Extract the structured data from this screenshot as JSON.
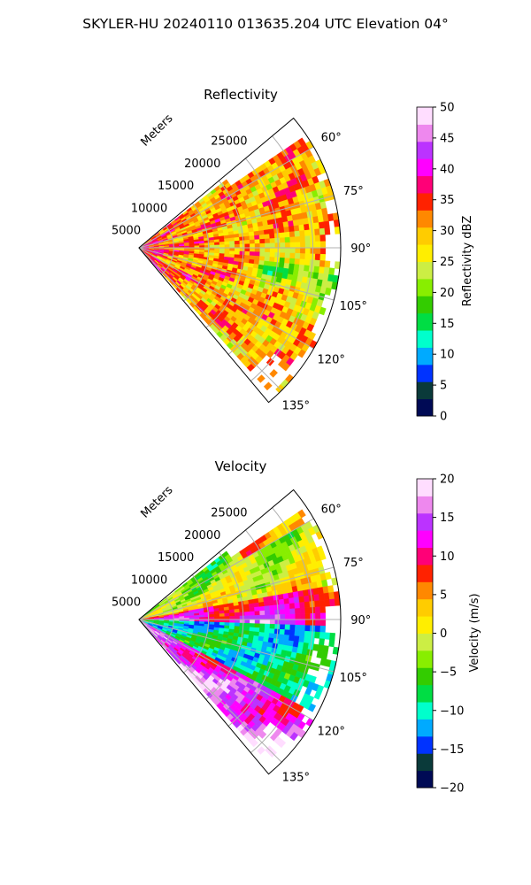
{
  "figure_title": "SKYLER-HU  20240110  013635.204 UTC Elevation 04°",
  "chart_data": [
    {
      "type": "heatmap",
      "projection": "polar-sector",
      "title": "Reflectivity",
      "range_axis_label": "Meters",
      "range_ticks": [
        5000,
        10000,
        15000,
        20000,
        25000
      ],
      "range_tick_labels": [
        "5000",
        "10000",
        "15000",
        "20000",
        "25000"
      ],
      "rmax": 29000,
      "azimuth_ticks": [
        60,
        75,
        90,
        105,
        120,
        135
      ],
      "azimuth_tick_labels": [
        "60°",
        "75°",
        "90°",
        "105°",
        "120°",
        "135°"
      ],
      "azimuth_range": [
        50,
        140
      ],
      "grid": true,
      "colorbar": {
        "label": "Reflectivity dBZ",
        "min": 0,
        "max": 50,
        "ticks": [
          0,
          5,
          10,
          15,
          20,
          25,
          30,
          35,
          40,
          45,
          50
        ],
        "tick_labels": [
          "0",
          "5",
          "10",
          "15",
          "20",
          "25",
          "30",
          "35",
          "40",
          "45",
          "50"
        ],
        "colors": [
          "#000a55",
          "#0a3a3a",
          "#0033ff",
          "#00aaff",
          "#00ffcc",
          "#00dd44",
          "#33cc00",
          "#88ee00",
          "#ccee44",
          "#ffee00",
          "#ffcc00",
          "#ff8800",
          "#ff2200",
          "#ff0077",
          "#ff00ff",
          "#bb33ff",
          "#ee88ee",
          "#ffddff"
        ]
      },
      "field": "reflectivity"
    },
    {
      "type": "heatmap",
      "projection": "polar-sector",
      "title": "Velocity",
      "range_axis_label": "Meters",
      "range_ticks": [
        5000,
        10000,
        15000,
        20000,
        25000
      ],
      "range_tick_labels": [
        "5000",
        "10000",
        "15000",
        "20000",
        "25000"
      ],
      "rmax": 29000,
      "azimuth_ticks": [
        60,
        75,
        90,
        105,
        120,
        135
      ],
      "azimuth_tick_labels": [
        "60°",
        "75°",
        "90°",
        "105°",
        "120°",
        "135°"
      ],
      "azimuth_range": [
        50,
        140
      ],
      "grid": true,
      "colorbar": {
        "label": "Velocity (m/s)",
        "min": -20,
        "max": 20,
        "ticks": [
          -20,
          -15,
          -10,
          -5,
          0,
          5,
          10,
          15,
          20
        ],
        "tick_labels": [
          "−20",
          "−15",
          "−10",
          "−5",
          "0",
          "5",
          "10",
          "15",
          "20"
        ],
        "colors": [
          "#000a55",
          "#0a3a3a",
          "#0033ff",
          "#00aaff",
          "#00ffcc",
          "#00dd44",
          "#33cc00",
          "#88ee00",
          "#ccee44",
          "#ffee00",
          "#ffcc00",
          "#ff8800",
          "#ff2200",
          "#ff0077",
          "#ff00ff",
          "#bb33ff",
          "#ee88ee",
          "#ffddff"
        ]
      },
      "field": "velocity"
    }
  ]
}
